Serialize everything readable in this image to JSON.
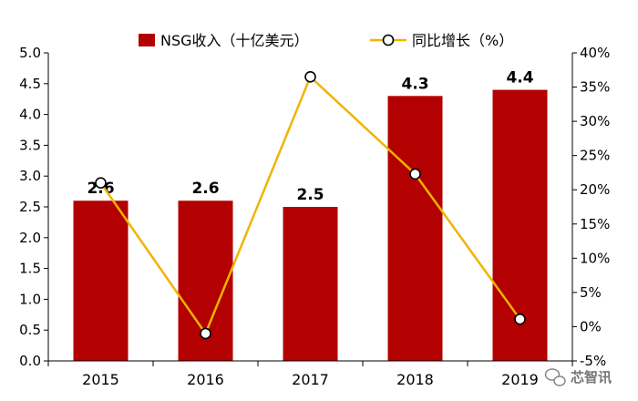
{
  "chart_data": {
    "type": "bar",
    "categories": [
      "2015",
      "2016",
      "2017",
      "2018",
      "2019"
    ],
    "series": [
      {
        "name": "NSG收入（十亿美元）",
        "type": "bar",
        "axis": "left",
        "values": [
          2.6,
          2.6,
          2.5,
          4.3,
          4.4
        ],
        "data_labels": [
          "2.6",
          "2.6",
          "2.5",
          "4.3",
          "4.4"
        ],
        "color": "#b30000"
      },
      {
        "name": "同比增长（%）",
        "type": "line",
        "axis": "right",
        "values": [
          21,
          -1,
          36.5,
          22.3,
          1.1
        ],
        "color": "#f0b400"
      }
    ],
    "y_left": {
      "lim": [
        0,
        5
      ],
      "ticks": [
        0,
        0.5,
        1,
        1.5,
        2,
        2.5,
        3,
        3.5,
        4,
        4.5,
        5
      ],
      "tick_labels": [
        "0.0",
        "0.5",
        "1.0",
        "1.5",
        "2.0",
        "2.5",
        "3.0",
        "3.5",
        "4.0",
        "4.5",
        "5.0"
      ]
    },
    "y_right": {
      "lim": [
        -5,
        40
      ],
      "ticks": [
        -5,
        0,
        5,
        10,
        15,
        20,
        25,
        30,
        35,
        40
      ],
      "tick_labels": [
        "-5%",
        "0%",
        "5%",
        "10%",
        "15%",
        "20%",
        "25%",
        "30%",
        "35%",
        "40%"
      ]
    },
    "title": "",
    "xlabel": "",
    "ylabel": "",
    "grid": false,
    "legend": "top-center"
  },
  "watermark": {
    "text": "芯智讯",
    "icon": "wechat-icon"
  }
}
